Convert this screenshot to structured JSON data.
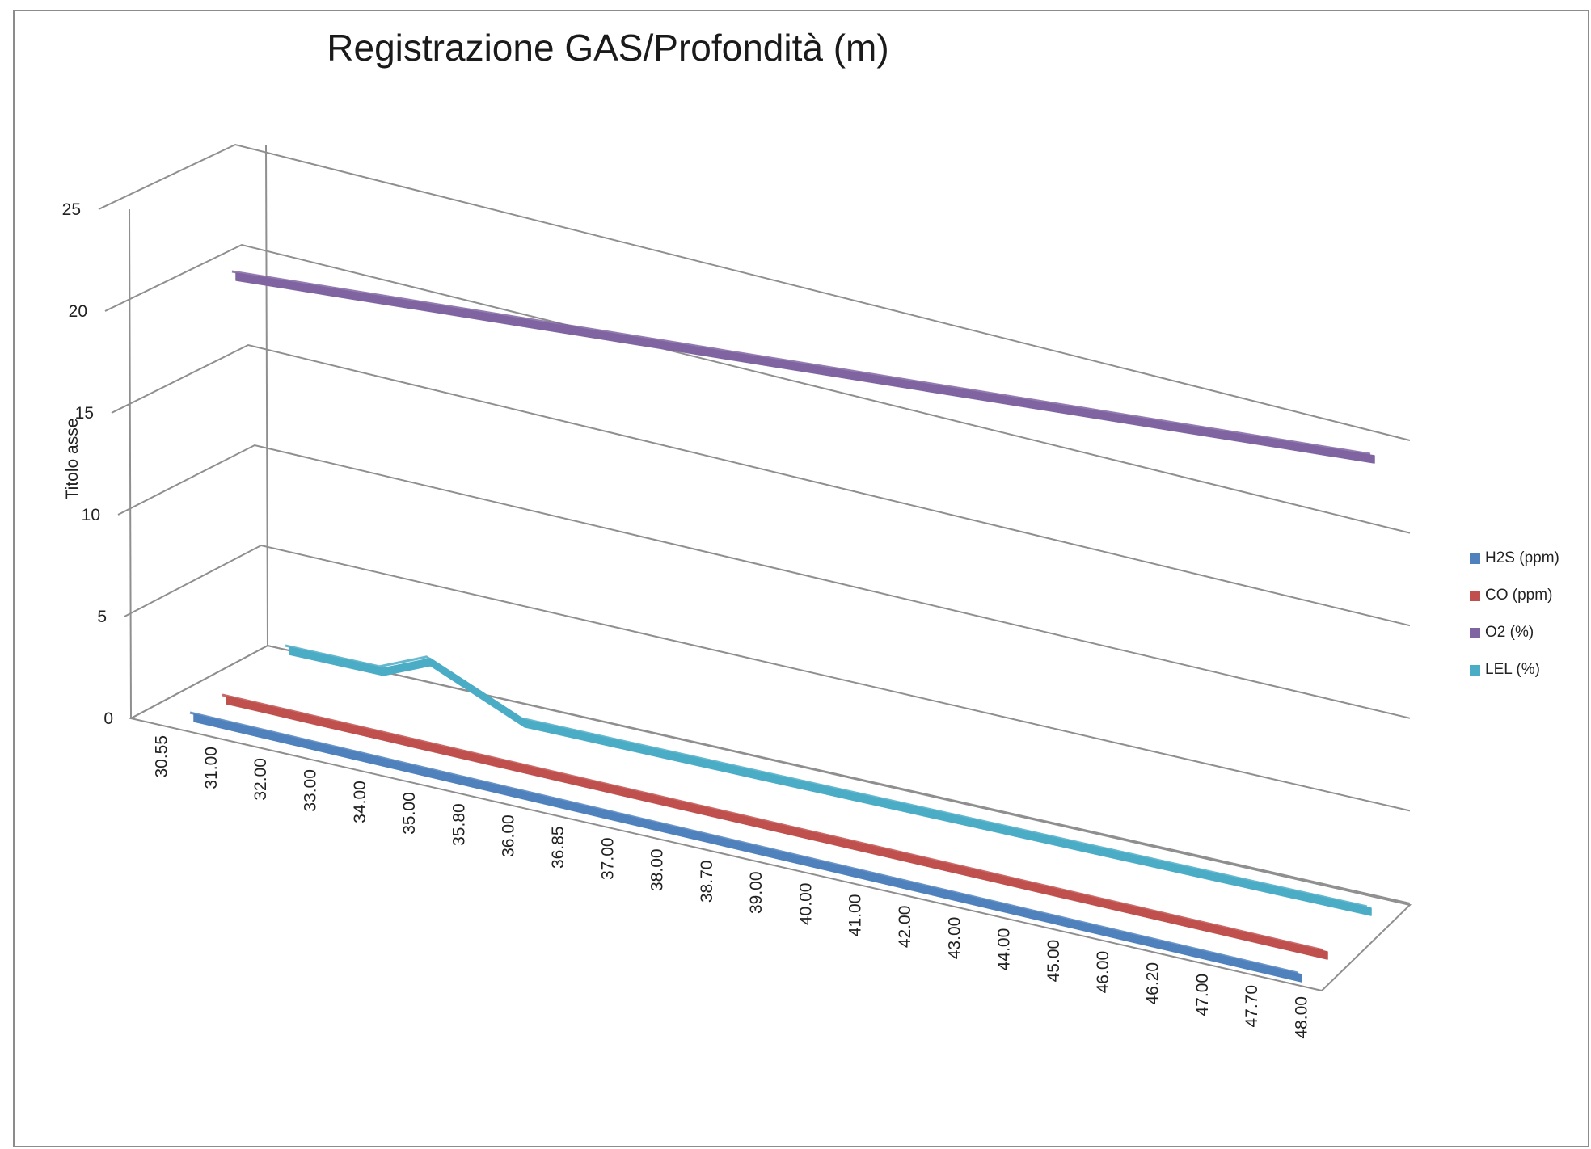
{
  "chart_data": {
    "type": "line",
    "subtype": "3d-line",
    "title": "Registrazione GAS/Profondità (m)",
    "ylabel": "Titolo asse",
    "xlabel": "",
    "ylim": [
      0,
      25
    ],
    "yticks": [
      "0",
      "5",
      "10",
      "15",
      "20",
      "25"
    ],
    "grid": true,
    "legend_position": "right",
    "categories": [
      "30.55",
      "31.00",
      "32.00",
      "33.00",
      "34.00",
      "35.00",
      "35.80",
      "36.00",
      "36.85",
      "37.00",
      "38.00",
      "38.70",
      "39.00",
      "40.00",
      "41.00",
      "42.00",
      "43.00",
      "44.00",
      "45.00",
      "46.00",
      "46.20",
      "47.00",
      "47.70",
      "48.00"
    ],
    "series": [
      {
        "name": "H2S (ppm)",
        "color": "#4f81bd",
        "values": [
          0,
          0,
          0,
          0,
          0,
          0,
          0,
          0,
          0,
          0,
          0,
          0,
          0,
          0,
          0,
          0,
          0,
          0,
          0,
          0,
          0,
          0,
          0,
          0
        ]
      },
      {
        "name": "CO (ppm)",
        "color": "#c0504d",
        "values": [
          0,
          0,
          0,
          0,
          0,
          0,
          0,
          0,
          0,
          0,
          0,
          0,
          0,
          0,
          0,
          0,
          0,
          0,
          0,
          0,
          0,
          0,
          0,
          0
        ]
      },
      {
        "name": "O2 (%)",
        "color": "#8064a2",
        "values": [
          20.9,
          20.9,
          20.9,
          20.9,
          20.9,
          20.9,
          20.9,
          20.9,
          20.9,
          20.9,
          20.9,
          20.9,
          20.9,
          20.9,
          20.9,
          20.9,
          20.9,
          20.9,
          20.9,
          20.9,
          20.9,
          20.9,
          20.9,
          20.9
        ]
      },
      {
        "name": "LEL (%)",
        "color": "#4bacc6",
        "values": [
          1,
          1,
          1,
          2,
          1,
          0,
          0,
          0,
          0,
          0,
          0,
          0,
          0,
          0,
          0,
          0,
          0,
          0,
          0,
          0,
          0,
          0,
          0,
          0
        ]
      }
    ]
  }
}
